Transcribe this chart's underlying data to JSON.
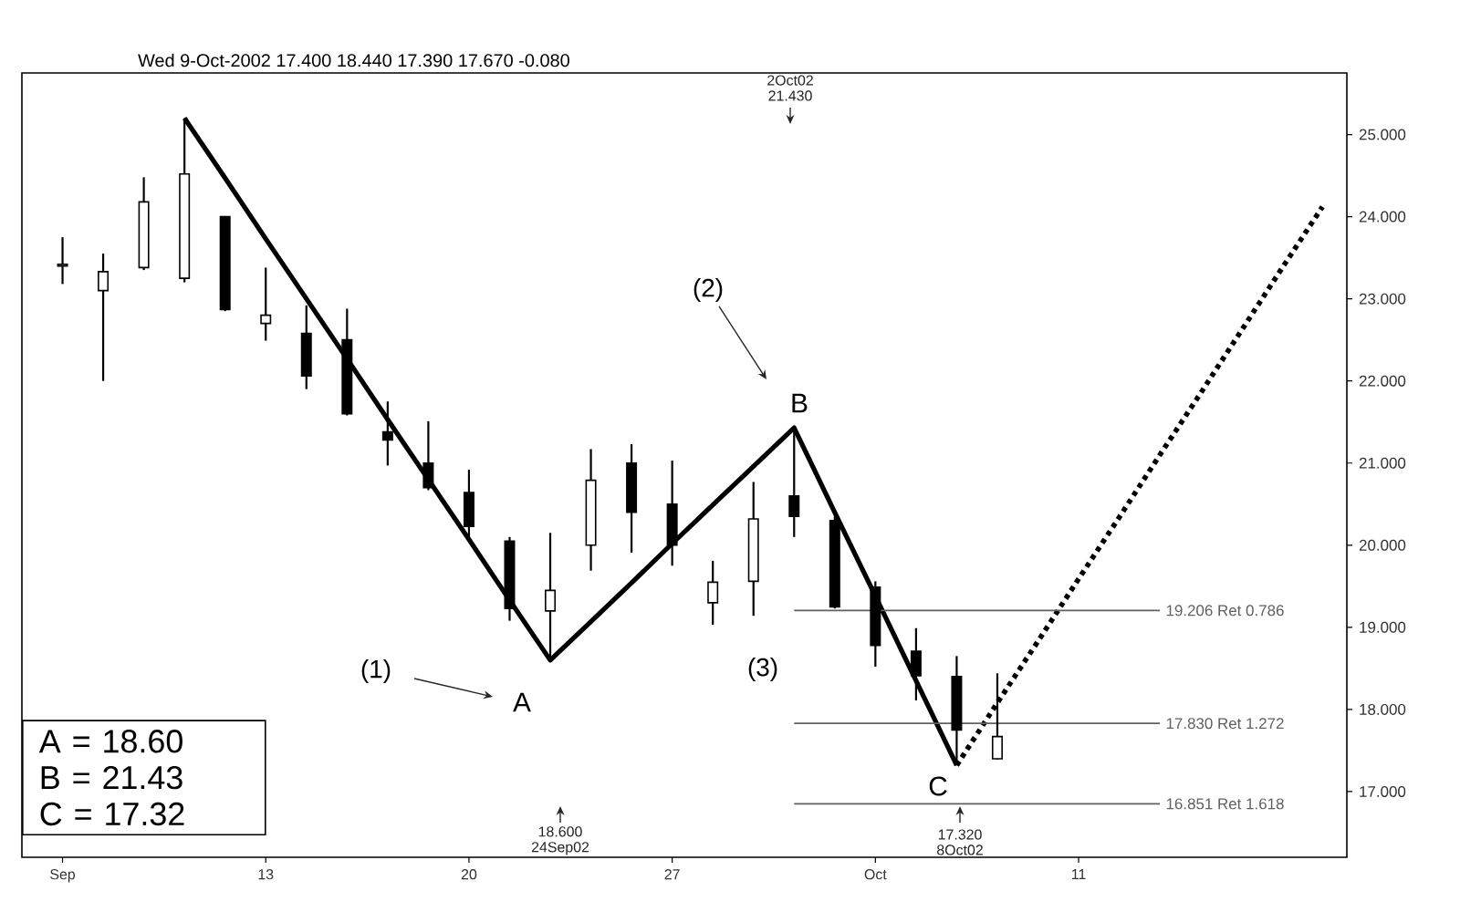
{
  "chart_data": {
    "type": "candlestick",
    "subtitle": "Wed 9-Oct-2002 17.400 18.440 17.390 17.670 -0.080",
    "categories": [
      "Sep",
      null,
      null,
      null,
      null,
      "13",
      null,
      null,
      null,
      null,
      "20",
      null,
      null,
      null,
      null,
      "27",
      null,
      null,
      null,
      null,
      "Oct",
      null,
      null,
      null,
      null,
      "11",
      null,
      null,
      null,
      null,
      null,
      null
    ],
    "ylim": [
      16.2,
      25.75
    ],
    "yticks": [
      {
        "value": 17,
        "label": "17.000"
      },
      {
        "value": 18,
        "label": "18.000"
      },
      {
        "value": 19,
        "label": "19.000"
      },
      {
        "value": 20,
        "label": "20.000"
      },
      {
        "value": 21,
        "label": "21.000"
      },
      {
        "value": 22,
        "label": "22.000"
      },
      {
        "value": 23,
        "label": "23.000"
      },
      {
        "value": 24,
        "label": "24.000"
      },
      {
        "value": 25,
        "label": "25.000"
      }
    ],
    "series": [
      {
        "type": "line",
        "color": "#000000",
        "line_style": "solid",
        "values": [
          null,
          null,
          null,
          25.2,
          24.47,
          23.73,
          23.0,
          22.27,
          21.53,
          20.8,
          20.07,
          19.33,
          18.6,
          19.07,
          19.54,
          20.02,
          20.49,
          20.96,
          21.43,
          20.4,
          19.38,
          18.35,
          17.32,
          null,
          null,
          null,
          null,
          null,
          null,
          null,
          null,
          null
        ]
      },
      {
        "type": "line",
        "color": "#000000",
        "line_style": "dotted",
        "values": [
          null,
          null,
          null,
          null,
          null,
          null,
          null,
          null,
          null,
          null,
          null,
          null,
          null,
          null,
          null,
          null,
          null,
          null,
          null,
          null,
          null,
          null,
          17.32,
          18.08,
          18.83,
          19.59,
          20.34,
          21.1,
          21.85,
          22.61,
          23.37,
          24.12
        ]
      },
      {
        "type": "line",
        "name": "19.206 Ret 0.786",
        "color": "#606060",
        "line_style": "solid",
        "values": [
          null,
          null,
          null,
          null,
          null,
          null,
          null,
          null,
          null,
          null,
          null,
          null,
          null,
          null,
          null,
          null,
          null,
          null,
          19.206,
          19.206,
          19.206,
          19.206,
          19.206,
          19.206,
          19.206,
          19.206,
          19.206,
          19.206,
          null,
          null,
          null,
          null
        ]
      },
      {
        "type": "line",
        "name": "17.830 Ret 1.272",
        "color": "#606060",
        "line_style": "solid",
        "values": [
          null,
          null,
          null,
          null,
          null,
          null,
          null,
          null,
          null,
          null,
          null,
          null,
          null,
          null,
          null,
          null,
          null,
          null,
          17.83,
          17.83,
          17.83,
          17.83,
          17.83,
          17.83,
          17.83,
          17.83,
          17.83,
          17.83,
          null,
          null,
          null,
          null
        ]
      },
      {
        "type": "line",
        "name": "16.851 Ret 1.618",
        "color": "#606060",
        "line_style": "solid",
        "values": [
          null,
          null,
          null,
          null,
          null,
          null,
          null,
          null,
          null,
          null,
          null,
          null,
          null,
          null,
          null,
          null,
          null,
          null,
          16.851,
          16.851,
          16.851,
          16.851,
          16.851,
          16.851,
          16.851,
          16.851,
          16.851,
          16.851,
          null,
          null,
          null,
          null
        ]
      },
      {
        "color": "#000000",
        "ohlc": [
          [
            23.4,
            23.75,
            23.18,
            23.42
          ],
          [
            23.1,
            23.55,
            22.0,
            23.33
          ],
          [
            23.38,
            24.48,
            23.35,
            24.18
          ],
          [
            23.25,
            25.2,
            23.2,
            24.52
          ],
          [
            24.0,
            24.0,
            22.85,
            22.87
          ],
          [
            22.7,
            23.38,
            22.49,
            22.8
          ],
          [
            22.58,
            22.92,
            21.9,
            22.06
          ],
          [
            22.5,
            22.88,
            21.58,
            21.6
          ],
          [
            21.38,
            21.75,
            20.97,
            21.28
          ],
          [
            21.0,
            21.51,
            20.67,
            20.7
          ],
          [
            20.64,
            20.92,
            20.1,
            20.23
          ],
          [
            20.05,
            20.1,
            19.08,
            19.23
          ],
          [
            19.2,
            20.15,
            18.6,
            19.45
          ],
          [
            20.0,
            21.17,
            19.69,
            20.79
          ],
          [
            21.0,
            21.23,
            19.91,
            20.4
          ],
          [
            20.5,
            21.03,
            19.75,
            20.0
          ],
          [
            19.3,
            19.81,
            19.03,
            19.55
          ],
          [
            19.56,
            20.77,
            19.14,
            20.32
          ],
          [
            20.6,
            21.43,
            20.1,
            20.35
          ],
          [
            20.3,
            20.35,
            19.23,
            19.25
          ],
          [
            19.49,
            19.56,
            18.52,
            18.78
          ],
          [
            18.71,
            18.99,
            18.11,
            18.41
          ],
          [
            18.4,
            18.65,
            17.32,
            17.75
          ],
          [
            17.4,
            18.44,
            17.39,
            17.67
          ],
          null,
          null,
          null,
          null,
          null,
          null,
          null,
          null
        ]
      }
    ],
    "annotations": [
      "A = 18.60",
      "B = 21.43",
      "C = 17.32",
      "A",
      "B",
      "C",
      "(1)",
      "(2)",
      "(3)",
      "2Oct02 21.430",
      "18.600 24Sep02",
      "17.320 8Oct02"
    ]
  }
}
